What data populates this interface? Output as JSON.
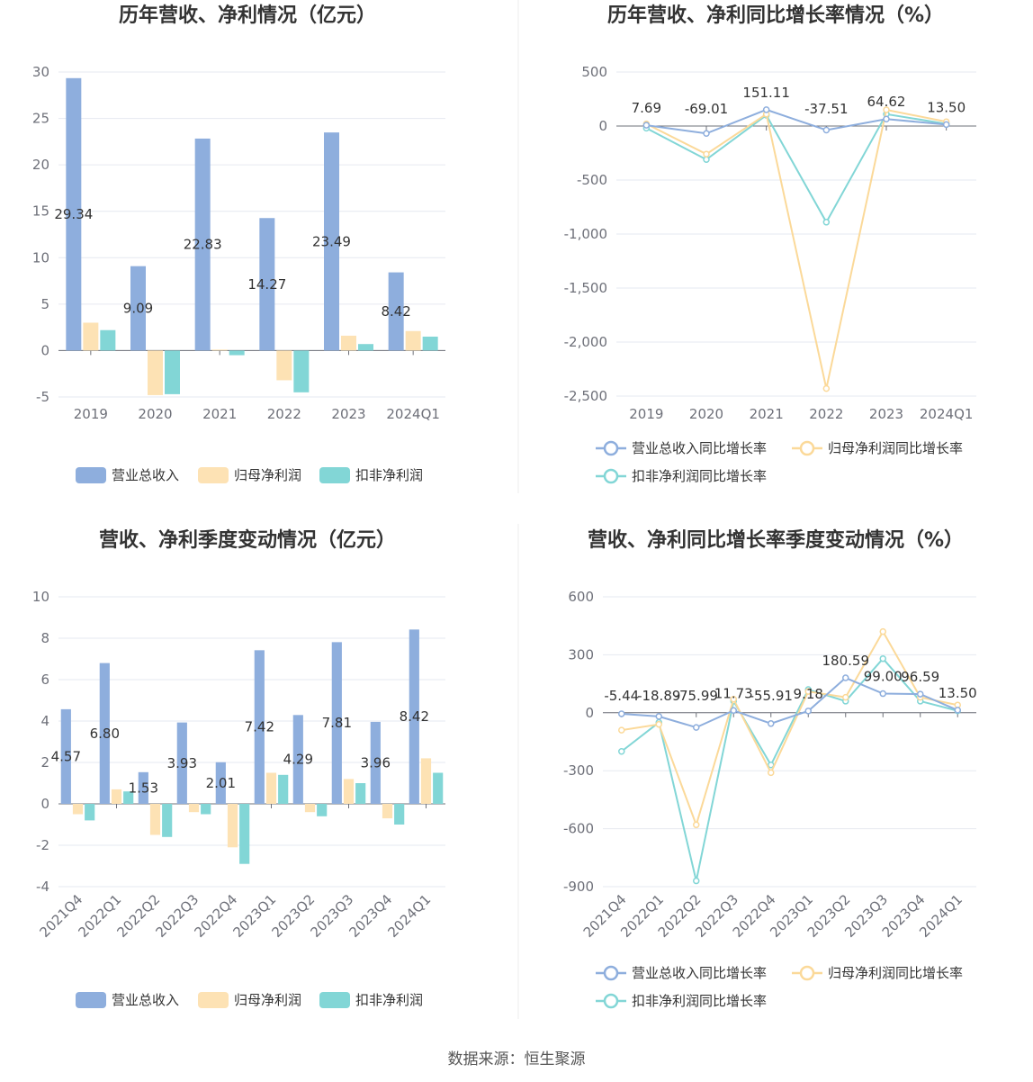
{
  "footer": {
    "source": "数据来源：恒生聚源"
  },
  "chart_data": [
    {
      "type": "bar",
      "title": "历年营收、净利情况（亿元）",
      "categories": [
        "2019",
        "2020",
        "2021",
        "2022",
        "2023",
        "2024Q1"
      ],
      "ylim": [
        -5,
        30
      ],
      "yticks": [
        "-5",
        "0",
        "5",
        "10",
        "15",
        "20",
        "25",
        "30"
      ],
      "grid": true,
      "legend_position": "bottom",
      "series": [
        {
          "name": "营业总收入",
          "color": "#8eaedd",
          "values": [
            29.34,
            9.09,
            22.83,
            14.27,
            23.49,
            8.42
          ],
          "labels": [
            "29.34",
            "9.09",
            "22.83",
            "14.27",
            "23.49",
            "8.42"
          ]
        },
        {
          "name": "归母净利润",
          "color": "#fde2b4",
          "values": [
            3.0,
            -4.8,
            0.1,
            -3.2,
            1.6,
            2.1
          ]
        },
        {
          "name": "扣非净利润",
          "color": "#82d6d6",
          "values": [
            2.2,
            -4.7,
            -0.5,
            -4.5,
            0.7,
            1.5
          ]
        }
      ]
    },
    {
      "type": "line",
      "title": "历年营收、净利同比增长率情况（%）",
      "categories": [
        "2019",
        "2020",
        "2021",
        "2022",
        "2023",
        "2024Q1"
      ],
      "ylim": [
        -2500,
        500
      ],
      "yticks": [
        "-2,500",
        "-2,000",
        "-1,500",
        "-1,000",
        "-500",
        "0",
        "500"
      ],
      "grid": true,
      "legend_position": "bottom",
      "series": [
        {
          "name": "营业总收入同比增长率",
          "color": "#8eaedd",
          "values": [
            7.69,
            -69.01,
            151.11,
            -37.51,
            64.62,
            13.5
          ],
          "labels": [
            "7.69",
            "-69.01",
            "151.11",
            "-37.51",
            "64.62",
            "13.50"
          ]
        },
        {
          "name": "归母净利润同比增长率",
          "color": "#fbd999",
          "values": [
            20,
            -260,
            110,
            -2430,
            150,
            40
          ]
        },
        {
          "name": "扣非净利润同比增长率",
          "color": "#82d6d6",
          "values": [
            -20,
            -310,
            100,
            -890,
            110,
            20
          ]
        }
      ]
    },
    {
      "type": "bar",
      "title": "营收、净利季度变动情况（亿元）",
      "categories": [
        "2021Q4",
        "2022Q1",
        "2022Q2",
        "2022Q3",
        "2022Q4",
        "2023Q1",
        "2023Q2",
        "2023Q3",
        "2023Q4",
        "2024Q1"
      ],
      "ylim": [
        -4,
        10
      ],
      "yticks": [
        "-4",
        "-2",
        "0",
        "2",
        "4",
        "6",
        "8",
        "10"
      ],
      "grid": true,
      "legend_position": "bottom",
      "series": [
        {
          "name": "营业总收入",
          "color": "#8eaedd",
          "values": [
            4.57,
            6.8,
            1.53,
            3.93,
            2.01,
            7.42,
            4.29,
            7.81,
            3.96,
            8.42
          ],
          "labels": [
            "4.57",
            "6.80",
            "1.53",
            "3.93",
            "2.01",
            "7.42",
            "4.29",
            "7.81",
            "3.96",
            "8.42"
          ]
        },
        {
          "name": "归母净利润",
          "color": "#fde2b4",
          "values": [
            -0.5,
            0.7,
            -1.5,
            -0.4,
            -2.1,
            1.5,
            -0.4,
            1.2,
            -0.7,
            2.2
          ]
        },
        {
          "name": "扣非净利润",
          "color": "#82d6d6",
          "values": [
            -0.8,
            0.6,
            -1.6,
            -0.5,
            -2.9,
            1.4,
            -0.6,
            1.0,
            -1.0,
            1.5
          ]
        }
      ]
    },
    {
      "type": "line",
      "title": "营收、净利同比增长率季度变动情况（%）",
      "categories": [
        "2021Q4",
        "2022Q1",
        "2022Q2",
        "2022Q3",
        "2022Q4",
        "2023Q1",
        "2023Q2",
        "2023Q3",
        "2023Q4",
        "2024Q1"
      ],
      "ylim": [
        -900,
        600
      ],
      "yticks": [
        "-900",
        "-600",
        "-300",
        "0",
        "300",
        "600"
      ],
      "grid": true,
      "legend_position": "bottom",
      "series": [
        {
          "name": "营业总收入同比增长率",
          "color": "#8eaedd",
          "values": [
            -5.44,
            -18.89,
            -75.99,
            11.73,
            -55.91,
            9.18,
            180.59,
            99.0,
            96.59,
            13.5
          ],
          "labels": [
            "-5.44",
            "-18.89",
            "-75.99",
            "11.73",
            "-55.91",
            "9.18",
            "180.59",
            "99.00",
            "96.59",
            "13.50"
          ]
        },
        {
          "name": "归母净利润同比增长率",
          "color": "#fbd999",
          "values": [
            -90,
            -60,
            -580,
            70,
            -310,
            110,
            80,
            420,
            80,
            40
          ]
        },
        {
          "name": "扣非净利润同比增长率",
          "color": "#82d6d6",
          "values": [
            -200,
            -50,
            -870,
            60,
            -270,
            120,
            60,
            280,
            60,
            10
          ]
        }
      ]
    }
  ]
}
